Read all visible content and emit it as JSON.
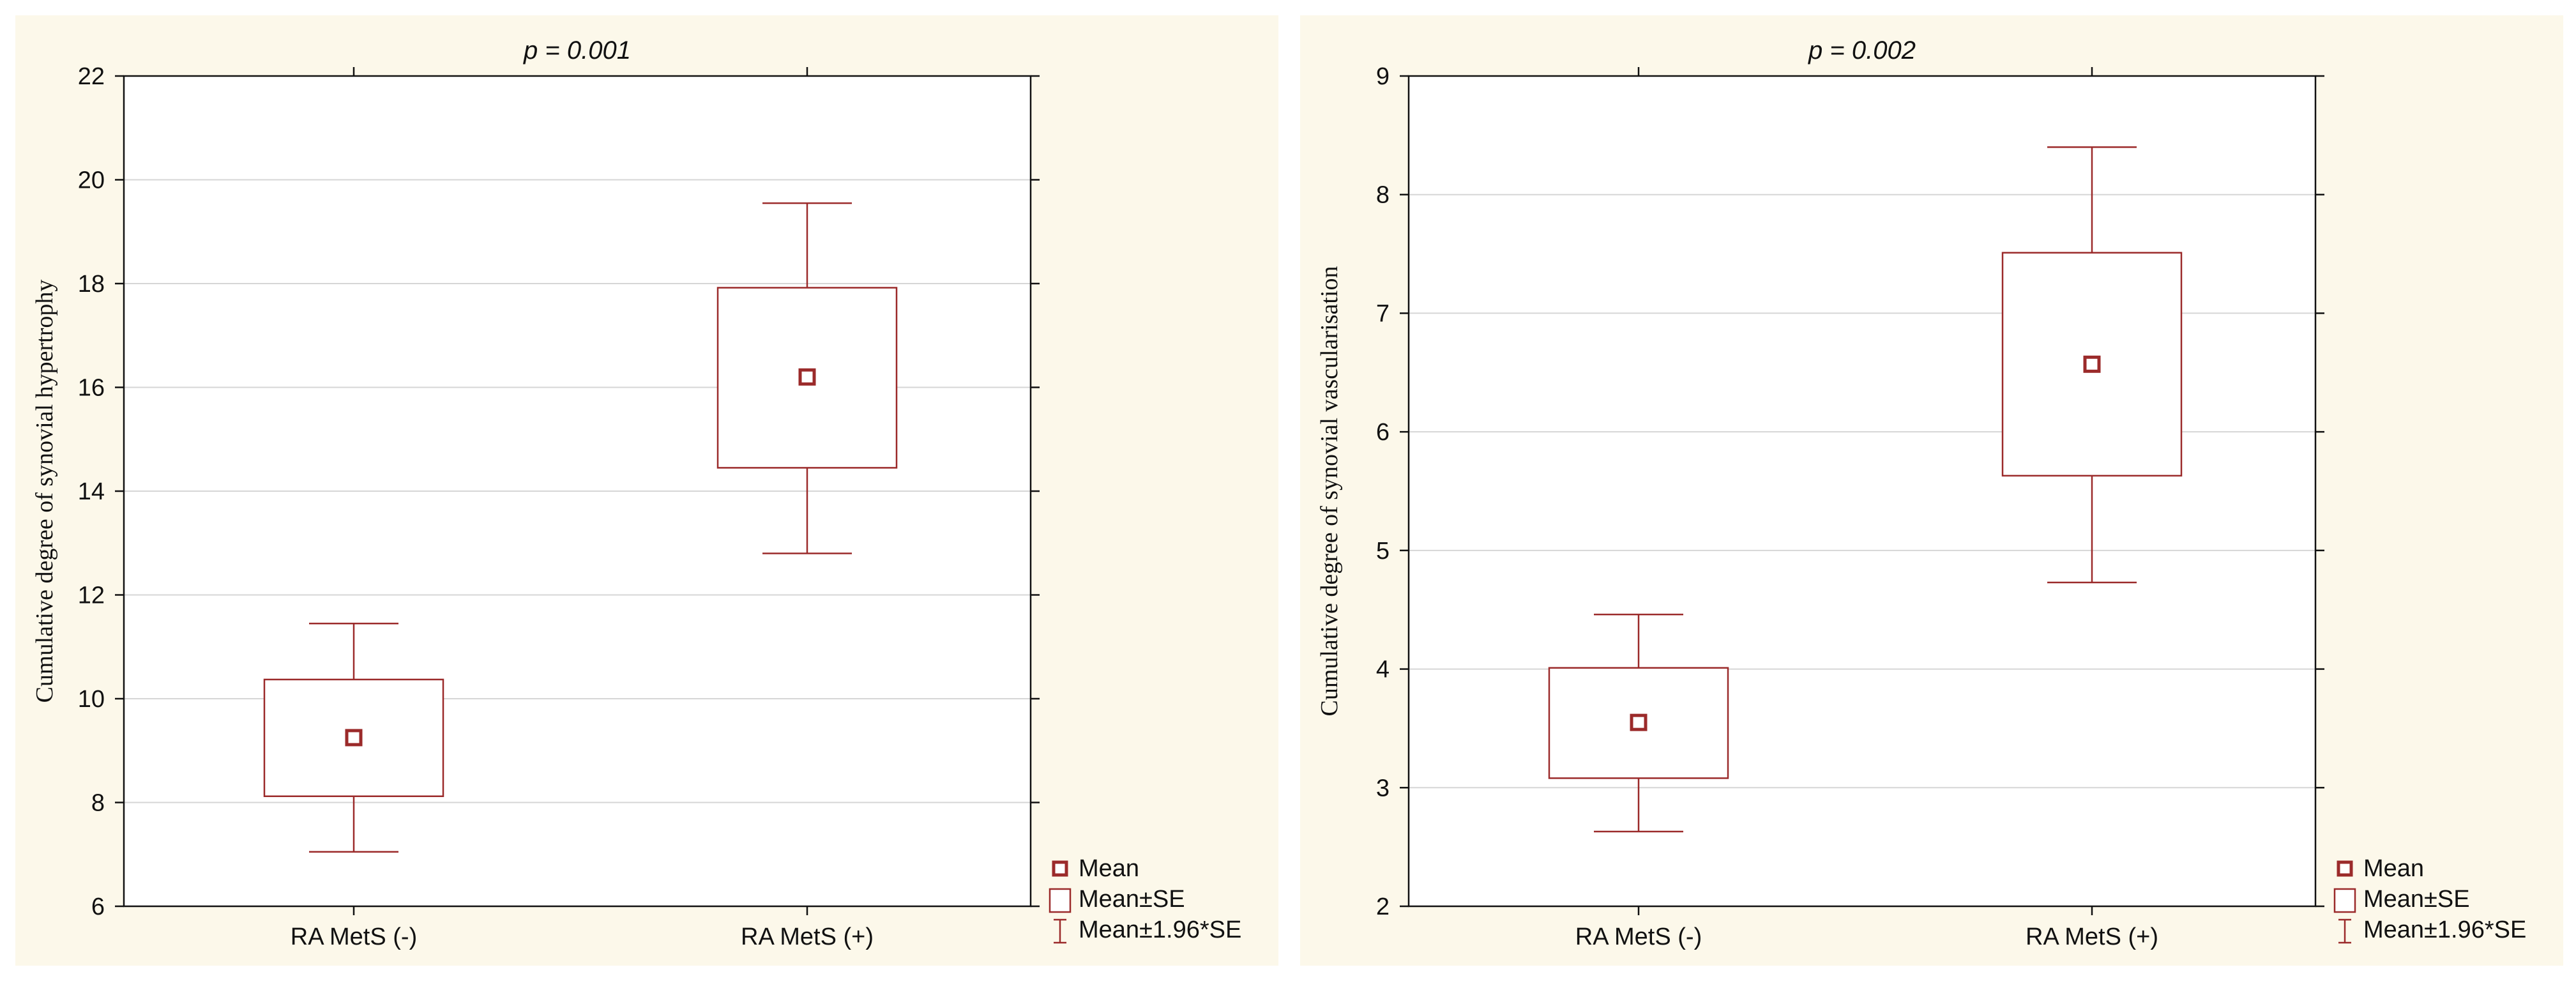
{
  "chart_data": [
    {
      "type": "box",
      "title": "p = 0.001",
      "xlabel": "",
      "ylabel": "Cumulative degree of synovial hypertrophy",
      "ylim": [
        6,
        22
      ],
      "yticks": [
        6,
        8,
        10,
        12,
        14,
        16,
        18,
        20,
        22
      ],
      "grid": true,
      "legend_position": "bottom-right",
      "categories": [
        "RA MetS (-)",
        "RA MetS (+)"
      ],
      "series": [
        {
          "name": "Mean",
          "values": [
            9.25,
            16.2
          ]
        },
        {
          "name": "Mean±SE",
          "low": [
            8.12,
            14.45
          ],
          "high": [
            10.37,
            17.92
          ]
        },
        {
          "name": "Mean±1.96*SE",
          "low": [
            7.05,
            12.8
          ],
          "high": [
            11.45,
            19.55
          ]
        }
      ]
    },
    {
      "type": "box",
      "title": "p = 0.002",
      "xlabel": "",
      "ylabel": "Cumulative degree of synovial vascularisation",
      "ylim": [
        2,
        9
      ],
      "yticks": [
        2,
        3,
        4,
        5,
        6,
        7,
        8,
        9
      ],
      "grid": true,
      "legend_position": "bottom-right",
      "categories": [
        "RA MetS (-)",
        "RA MetS (+)"
      ],
      "series": [
        {
          "name": "Mean",
          "values": [
            3.55,
            6.57
          ]
        },
        {
          "name": "Mean±SE",
          "low": [
            3.08,
            5.63
          ],
          "high": [
            4.01,
            7.51
          ]
        },
        {
          "name": "Mean±1.96*SE",
          "low": [
            2.63,
            4.73
          ],
          "high": [
            4.46,
            8.4
          ]
        }
      ]
    }
  ],
  "colors": {
    "series": "#9b2a2a",
    "grid": "#d6d6d6",
    "axis": "#111111",
    "panel_background": "#fcf8ea"
  }
}
